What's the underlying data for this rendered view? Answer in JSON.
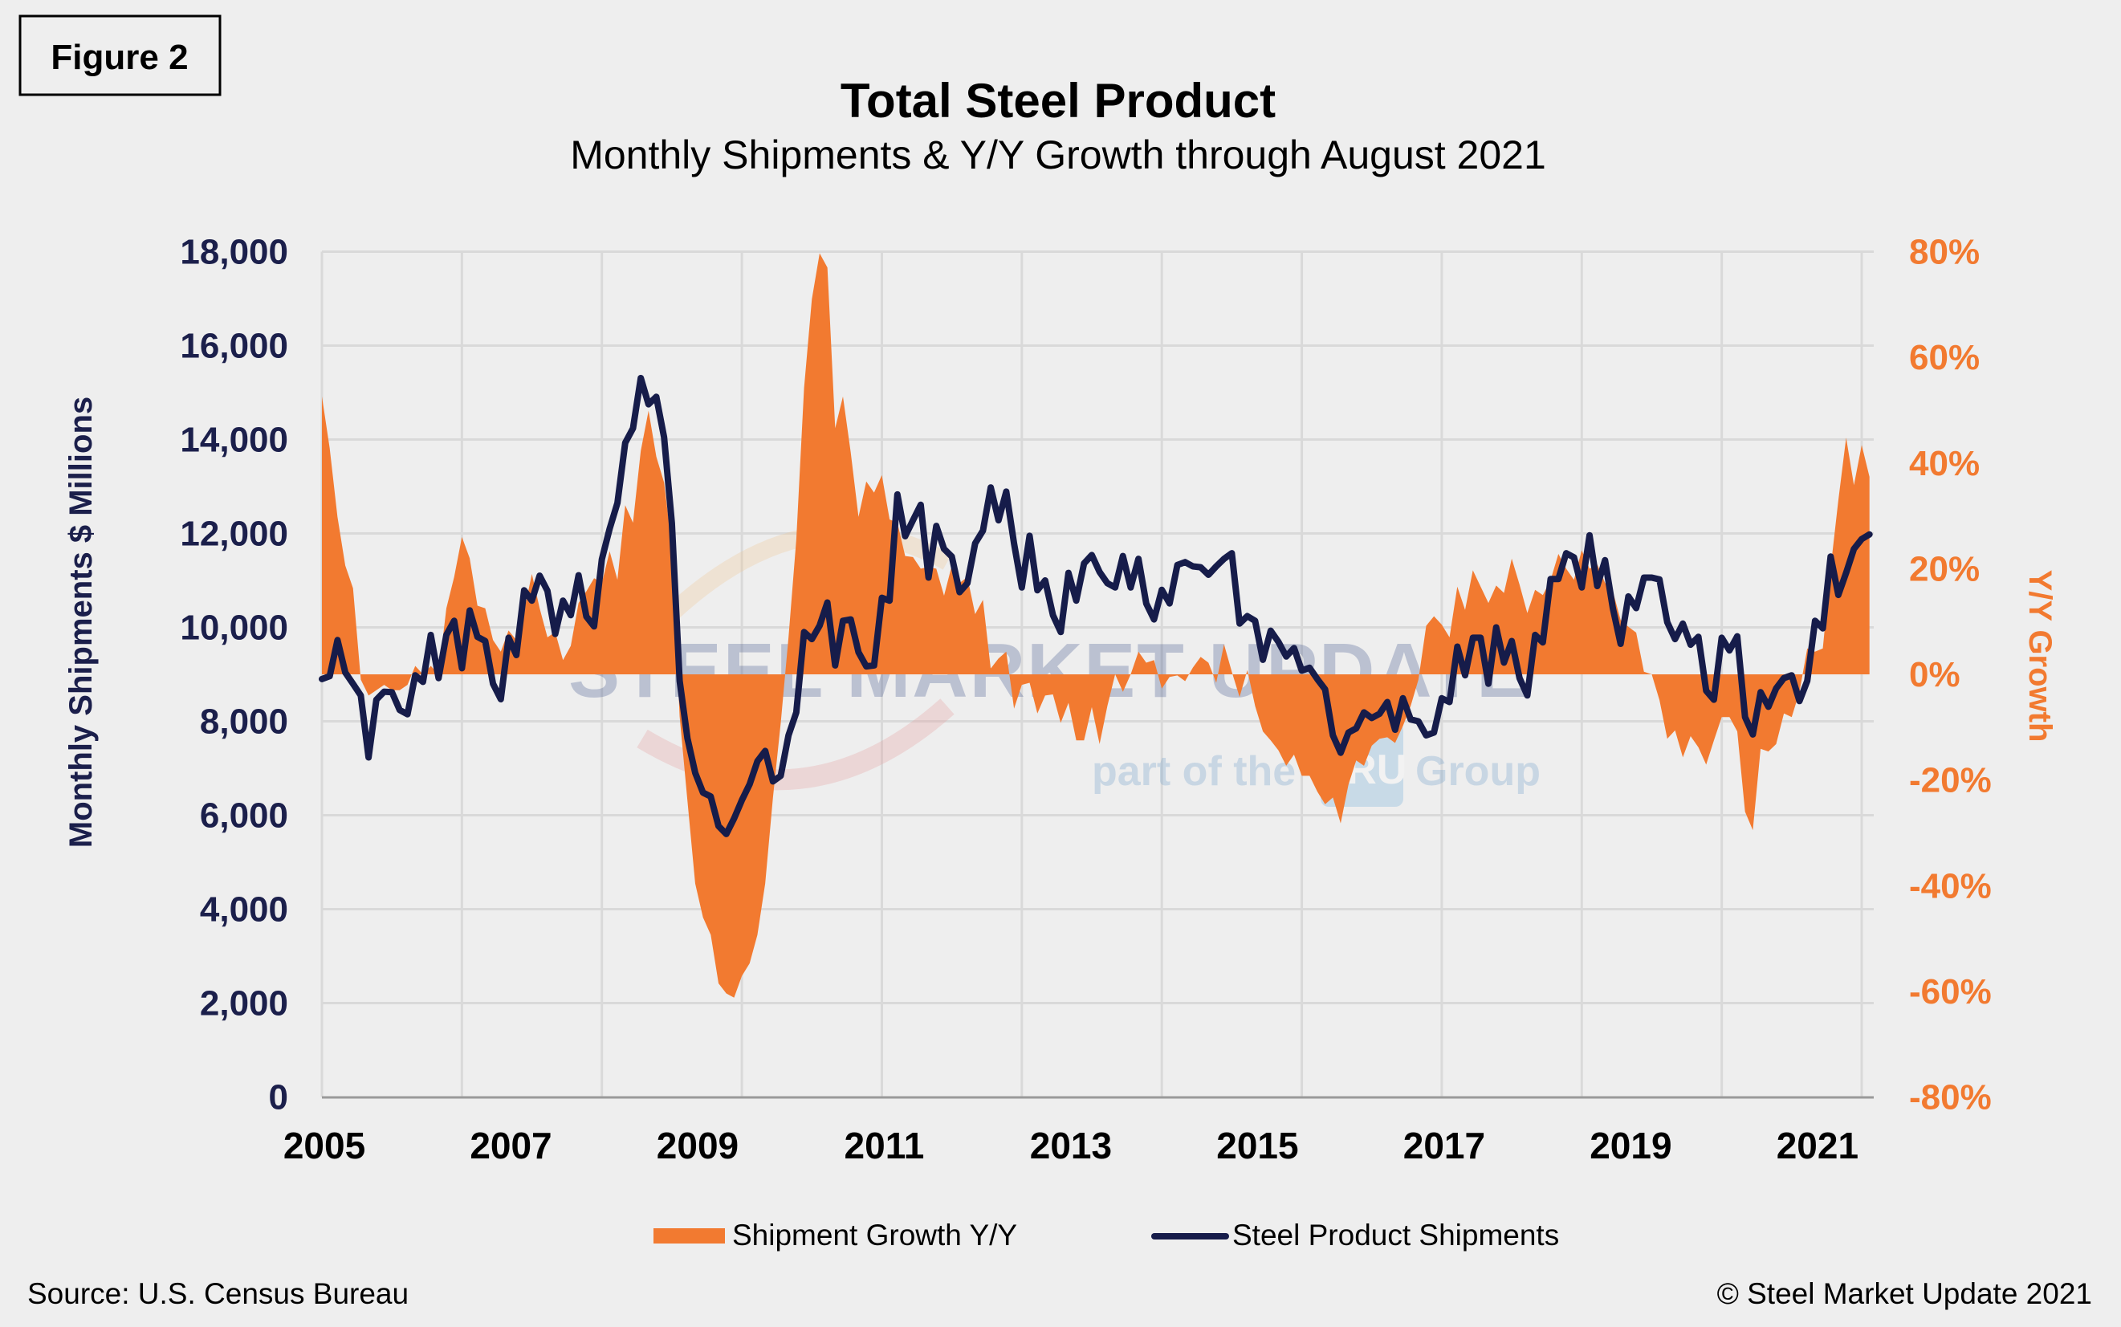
{
  "figure_label": "Figure 2",
  "title": "Total Steel Product",
  "subtitle": "Monthly Shipments & Y/Y Growth through August 2021",
  "source": "Source: U.S. Census Bureau",
  "copyright": "© Steel Market Update 2021",
  "watermark": {
    "brand": "STEEL MARKET UPDATE",
    "tagline_pre": "part of the",
    "tagline_logo": "CRU",
    "tagline_post": "Group"
  },
  "colors": {
    "line": "#161c4a",
    "area": "#f27a30",
    "left_axis": "#1b1f4b",
    "right_axis": "#f27a30",
    "grid": "#d9d9d9",
    "background": "#eeeeee"
  },
  "chart_data": {
    "type": "line+area",
    "title": "Total Steel Product",
    "subtitle": "Monthly Shipments & Y/Y Growth through August 2021",
    "x_frequency": "monthly",
    "x_range": [
      "2005-01",
      "2021-08"
    ],
    "x_tick_labels": [
      "2005",
      "2007",
      "2009",
      "2011",
      "2013",
      "2015",
      "2017",
      "2019",
      "2021"
    ],
    "y_left": {
      "label": "Monthly Shipments $ Millions",
      "range": [
        0,
        18000
      ],
      "ticks": [
        "0",
        "2,000",
        "4,000",
        "6,000",
        "8,000",
        "10,000",
        "12,000",
        "14,000",
        "16,000",
        "18,000"
      ]
    },
    "y_right": {
      "label": "Y/Y Growth",
      "range": [
        -80,
        80
      ],
      "unit": "%",
      "ticks": [
        "-80%",
        "-60%",
        "-40%",
        "-20%",
        "0%",
        "20%",
        "40%",
        "60%",
        "80%"
      ]
    },
    "grid": true,
    "legend_position": "bottom",
    "series": [
      {
        "name": "Shipment Growth Y/Y",
        "type": "area",
        "axis": "right",
        "values_by_year": {
          "2005": [
            52.6,
            42.8,
            29.8,
            20.6,
            16.3,
            -1,
            -4,
            -3,
            -2,
            -3,
            -3,
            -2
          ],
          "2006": [
            1.6,
            0,
            1.6,
            0,
            12.5,
            18.4,
            26,
            22,
            13,
            12.5,
            6.5,
            4.3
          ],
          "2007": [
            8.3,
            6.5,
            12,
            19,
            12.5,
            7,
            8,
            2.7,
            5.4,
            13.5,
            15.7,
            18.2
          ],
          "2008": [
            17.3,
            23.3,
            17.9,
            32,
            28.7,
            42.3,
            49.9,
            41.2,
            36.3,
            24,
            -8,
            -23.9
          ],
          "2009": [
            -39.6,
            -46,
            -49.3,
            -58.5,
            -60.4,
            -61.2,
            -57.1,
            -54.7,
            -49.3,
            -39.6,
            -23.3,
            -9.2
          ],
          "2010": [
            7,
            25.5,
            54.2,
            71,
            79.7,
            77,
            46.6,
            52.6,
            42,
            29.8,
            36.5,
            34.4
          ],
          "2011": [
            37.7,
            29.3,
            28.7,
            22.4,
            22.2,
            20,
            20.3,
            20,
            14.9,
            20.6,
            17.3,
            18.4
          ],
          "2012": [
            11.4,
            14.1,
            1.1,
            3,
            4.3,
            -6.5,
            -2,
            -1.6,
            -7.4,
            -4,
            -3.8,
            -9.2
          ],
          "2013": [
            -5.4,
            -12.5,
            -12.5,
            -6.2,
            -13.2,
            -6,
            0,
            -3.3,
            0,
            4.3,
            2.2,
            2.7
          ],
          "2014": [
            -2.7,
            -0.5,
            -0.2,
            -1.3,
            1.3,
            3.3,
            2.2,
            -1.6,
            5.7,
            0.5,
            -4.3,
            0.8
          ],
          "2015": [
            -6,
            -10.8,
            -12.5,
            -14.4,
            -17.3,
            -15.2,
            -19.2,
            -19.2,
            -22.2,
            -24.6,
            -23.3,
            -28.2
          ],
          "2016": [
            -20.9,
            -16.3,
            -17.3,
            -13.5,
            -12.2,
            -11.9,
            -13,
            -9.8,
            -6,
            -1,
            9.2,
            11
          ],
          "2017": [
            9.4,
            7,
            16.6,
            12.2,
            19.7,
            16.6,
            13.5,
            16.8,
            15.4,
            21.9,
            17,
            11.6
          ],
          "2018": [
            16,
            15,
            17.9,
            22.8,
            20,
            17.9,
            23.5,
            20,
            20.8,
            17.3,
            15.7,
            10.3
          ],
          "2019": [
            9,
            7.9,
            0.5,
            0,
            -4.9,
            -12.2,
            -10.6,
            -15.7,
            -11.7,
            -13.8,
            -17.1,
            -12.5
          ],
          "2020": [
            -8.1,
            -8.1,
            -10.8,
            -26,
            -29.5,
            -14.1,
            -14.6,
            -13.2,
            -7.4,
            -8.1,
            -3.3,
            4.9
          ],
          "2021": [
            4.3,
            4.9,
            20,
            33,
            44.8,
            35.8,
            43.4,
            37.4
          ]
        }
      },
      {
        "name": "Steel Product Shipments",
        "type": "line",
        "axis": "left",
        "values_by_year": {
          "2005": [
            8900,
            8960,
            9730,
            9040,
            8800,
            8550,
            7230,
            8460,
            8630,
            8620,
            8240,
            8150
          ],
          "2006": [
            8980,
            8840,
            9840,
            8920,
            9840,
            10140,
            9130,
            10360,
            9800,
            9710,
            8800,
            8470
          ],
          "2007": [
            9780,
            9410,
            10790,
            10570,
            11100,
            10780,
            9860,
            10570,
            10260,
            11110,
            10230,
            10020
          ],
          "2008": [
            11450,
            12100,
            12650,
            13930,
            14240,
            15310,
            14750,
            14910,
            14050,
            12220,
            8860,
            7640
          ],
          "2009": [
            6900,
            6480,
            6400,
            5770,
            5600,
            5930,
            6320,
            6660,
            7150,
            7370,
            6720,
            6840
          ],
          "2010": [
            7700,
            8190,
            9900,
            9750,
            10040,
            10530,
            9190,
            10140,
            10170,
            9470,
            9170,
            9190
          ],
          "2011": [
            10630,
            10570,
            12830,
            11940,
            12280,
            12610,
            11060,
            12160,
            11670,
            11510,
            10750,
            10940
          ],
          "2012": [
            11790,
            12060,
            12980,
            12280,
            12890,
            11790,
            10850,
            11950,
            10790,
            11000,
            10260,
            9900
          ],
          "2013": [
            11160,
            10570,
            11360,
            11540,
            11180,
            10940,
            10850,
            11520,
            10850,
            11460,
            10510,
            10170
          ],
          "2014": [
            10800,
            10510,
            11330,
            11390,
            11300,
            11280,
            11120,
            11300,
            11460,
            11580,
            10080,
            10240
          ],
          "2015": [
            10140,
            9310,
            9930,
            9690,
            9380,
            9560,
            9080,
            9140,
            8900,
            8680,
            7700,
            7330
          ],
          "2016": [
            7760,
            7850,
            8190,
            8070,
            8160,
            8410,
            7820,
            8490,
            8040,
            8000,
            7700,
            7760
          ],
          "2017": [
            8490,
            8410,
            9590,
            8980,
            9780,
            9780,
            8800,
            10000,
            9250,
            9710,
            8920,
            8550
          ],
          "2018": [
            9840,
            9680,
            11030,
            11030,
            11580,
            11490,
            10850,
            11960,
            10880,
            11430,
            10410,
            9650
          ],
          "2019": [
            10660,
            10410,
            11060,
            11060,
            11020,
            10110,
            9750,
            10080,
            9630,
            9800,
            8650,
            8460
          ],
          "2020": [
            9780,
            9510,
            9810,
            8090,
            7720,
            8620,
            8310,
            8700,
            8920,
            8980,
            8430,
            8860
          ],
          "2021": [
            10140,
            9980,
            11510,
            10690,
            11160,
            11670,
            11880,
            11980
          ]
        }
      }
    ]
  }
}
